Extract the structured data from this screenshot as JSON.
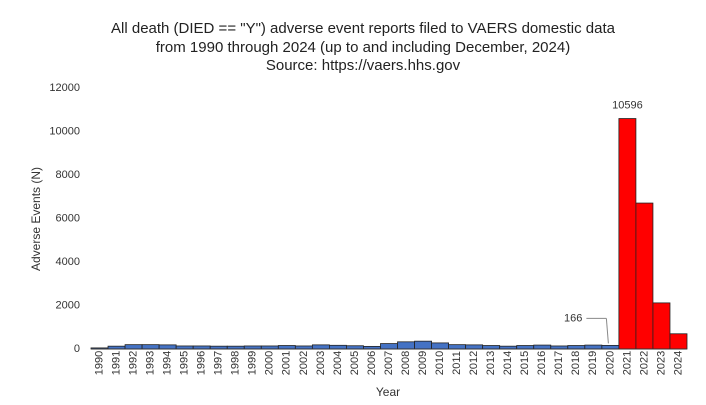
{
  "chart_data": {
    "type": "bar",
    "title": [
      "All death (DIED == \"Y\") adverse event reports filed to VAERS domestic data",
      "from 1990 through 2024 (up to and including December, 2024)"
    ],
    "subtitle": "Source: https://vaers.hhs.gov",
    "x_label": "Year",
    "y_label": "Adverse Events (N)",
    "categories": [
      "1990",
      "1991",
      "1992",
      "1993",
      "1994",
      "1995",
      "1996",
      "1997",
      "1998",
      "1999",
      "2000",
      "2001",
      "2002",
      "2003",
      "2004",
      "2005",
      "2006",
      "2007",
      "2008",
      "2009",
      "2010",
      "2011",
      "2012",
      "2013",
      "2014",
      "2015",
      "2016",
      "2017",
      "2018",
      "2019",
      "2020",
      "2021",
      "2022",
      "2023",
      "2024"
    ],
    "values": [
      50,
      130,
      200,
      200,
      190,
      140,
      140,
      130,
      130,
      140,
      140,
      160,
      140,
      190,
      170,
      150,
      120,
      250,
      330,
      360,
      280,
      200,
      190,
      160,
      130,
      160,
      180,
      140,
      160,
      180,
      166,
      10596,
      6710,
      2120,
      700
    ],
    "value_labels": [
      null,
      null,
      null,
      null,
      null,
      null,
      null,
      null,
      null,
      null,
      null,
      null,
      null,
      null,
      null,
      null,
      null,
      null,
      null,
      null,
      null,
      null,
      null,
      null,
      null,
      null,
      null,
      null,
      null,
      null,
      "166",
      "10596",
      null,
      null,
      null
    ],
    "colors": [
      "#4472c4",
      "#4472c4",
      "#4472c4",
      "#4472c4",
      "#4472c4",
      "#4472c4",
      "#4472c4",
      "#4472c4",
      "#4472c4",
      "#4472c4",
      "#4472c4",
      "#4472c4",
      "#4472c4",
      "#4472c4",
      "#4472c4",
      "#4472c4",
      "#4472c4",
      "#4472c4",
      "#4472c4",
      "#4472c4",
      "#4472c4",
      "#4472c4",
      "#4472c4",
      "#4472c4",
      "#4472c4",
      "#4472c4",
      "#4472c4",
      "#4472c4",
      "#4472c4",
      "#4472c4",
      "#4472c4",
      "#ff0000",
      "#ff0000",
      "#ff0000",
      "#ff0000"
    ],
    "ylim": [
      0,
      12000
    ],
    "yticks": [
      0,
      2000,
      4000,
      6000,
      8000,
      10000,
      12000
    ],
    "grid": false
  }
}
